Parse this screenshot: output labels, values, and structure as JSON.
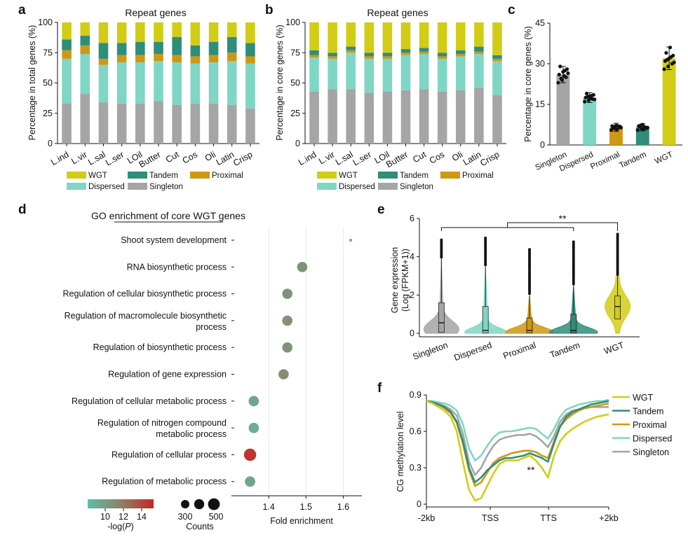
{
  "colors": {
    "WGT": "#d2cc16",
    "Tandem": "#2e8e7a",
    "Proximal": "#cf9814",
    "Dispersed": "#7fd6c4",
    "Singleton": "#a5a5a5"
  },
  "panel_labels": {
    "a": "a",
    "b": "b",
    "c": "c",
    "d": "d",
    "e": "e",
    "f": "f"
  },
  "chart_data": [
    {
      "panel": "a",
      "type": "bar",
      "stacked": true,
      "title": "Repeat genes",
      "ylabel": "Percentage in total genes (%)",
      "ylim": [
        0,
        100
      ],
      "yticks": [
        "0",
        "25",
        "50",
        "75",
        "100"
      ],
      "categories": [
        "L.ind",
        "L.vir",
        "L.sal",
        "L.ser",
        "LOil",
        "Butter",
        "Cut",
        "Cos",
        "Oli",
        "Latin",
        "Crisp"
      ],
      "series": [
        {
          "name": "Singleton",
          "values": [
            33,
            41,
            34,
            33,
            33,
            35,
            32,
            33,
            33,
            32,
            29
          ]
        },
        {
          "name": "Dispersed",
          "values": [
            37,
            33,
            31,
            34,
            34,
            33,
            35,
            33,
            34,
            36,
            37
          ]
        },
        {
          "name": "Proximal",
          "values": [
            7,
            7,
            5,
            6,
            6,
            6,
            6,
            6,
            6,
            7,
            6
          ]
        },
        {
          "name": "Tandem",
          "values": [
            9,
            8,
            13,
            10,
            11,
            10,
            15,
            9,
            11,
            13,
            11
          ]
        },
        {
          "name": "WGT",
          "values": [
            14,
            11,
            17,
            17,
            16,
            16,
            12,
            19,
            16,
            12,
            17
          ]
        }
      ],
      "legend": {
        "row1": [
          "WGT",
          "Tandem",
          "Proximal"
        ],
        "row2": [
          "Dispersed",
          "Singleton"
        ]
      }
    },
    {
      "panel": "b",
      "type": "bar",
      "stacked": true,
      "title": "Repeat genes",
      "ylabel": "Percentage in core genes (%)",
      "ylim": [
        0,
        100
      ],
      "yticks": [
        "0",
        "25",
        "50",
        "75",
        "100"
      ],
      "categories": [
        "L.ind",
        "L.vir",
        "L.sal",
        "L.ser",
        "LOil",
        "Butter",
        "Cut",
        "Cos",
        "Oli",
        "Latin",
        "Crisp"
      ],
      "series": [
        {
          "name": "Singleton",
          "values": [
            43,
            45,
            45,
            42,
            43,
            44,
            45,
            43,
            44,
            46,
            40
          ]
        },
        {
          "name": "Dispersed",
          "values": [
            28,
            25,
            30,
            28,
            27,
            29,
            29,
            27,
            28,
            28,
            28
          ]
        },
        {
          "name": "Proximal",
          "values": [
            2,
            2,
            2,
            2,
            2,
            2,
            2,
            2,
            2,
            2,
            2
          ]
        },
        {
          "name": "Tandem",
          "values": [
            4,
            3,
            3,
            3,
            3,
            3,
            3,
            3,
            3,
            4,
            3
          ]
        },
        {
          "name": "WGT",
          "values": [
            23,
            25,
            20,
            25,
            25,
            22,
            21,
            25,
            23,
            20,
            27
          ]
        }
      ],
      "legend": {
        "row1": [
          "WGT",
          "Tandem",
          "Proximal"
        ],
        "row2": [
          "Dispersed",
          "Singleton"
        ]
      }
    },
    {
      "panel": "c",
      "type": "bar",
      "ylabel": "Percentage in core genes (%)",
      "ylim": [
        0,
        45
      ],
      "yticks": [
        "0",
        "15",
        "30",
        "45"
      ],
      "categories": [
        "Singleton",
        "Dispersed",
        "Proximal",
        "Tandem",
        "WGT"
      ],
      "values": [
        26,
        17.5,
        6.5,
        6.5,
        32
      ],
      "error": [
        3,
        1.8,
        1.5,
        1.3,
        4.2
      ],
      "points": [
        [
          23,
          24,
          25,
          26,
          27,
          28,
          29,
          25.5,
          26.5,
          24.5,
          27.5
        ],
        [
          16,
          16.5,
          17,
          17.5,
          18,
          18.5,
          19,
          17.2,
          16.8,
          17.8,
          18.2
        ],
        [
          5.5,
          6,
          6.5,
          7,
          7.2,
          6.8,
          6.2,
          5.8,
          6.4,
          6.6,
          7
        ],
        [
          5.5,
          6,
          6.5,
          7,
          7.5,
          6.2,
          6.8,
          5.8,
          6.4,
          7.2,
          6.6
        ],
        [
          28,
          29,
          30,
          31,
          32,
          33,
          34,
          36,
          30.5,
          31.5,
          32.5
        ]
      ]
    },
    {
      "panel": "d",
      "type": "scatter",
      "title": "GO enrichment of core WGT genes",
      "xlabel": "Fold enrichment",
      "xlim": [
        1.3,
        1.65
      ],
      "xticks": [
        "1.4",
        "1.5",
        "1.6"
      ],
      "terms": [
        [
          "Shoot system development"
        ],
        [
          "RNA biosynthetic process"
        ],
        [
          "Regulation of cellular biosynthetic process"
        ],
        [
          "Regulation of macromolecule biosynthetic",
          "process"
        ],
        [
          "Regulation of biosynthetic process"
        ],
        [
          "Regulation of gene expression"
        ],
        [
          "Regulation of cellular metabolic process"
        ],
        [
          "Regulation of nitrogen compound",
          "metabolic process"
        ],
        [
          "Regulation of cellular process"
        ],
        [
          "Regulation of metabolic process"
        ]
      ],
      "fold_enrichment": [
        1.62,
        1.49,
        1.45,
        1.45,
        1.45,
        1.44,
        1.36,
        1.36,
        1.35,
        1.35
      ],
      "counts": [
        30,
        390,
        390,
        390,
        390,
        390,
        400,
        400,
        560,
        400
      ],
      "neg_log_p": [
        10,
        11.5,
        11.5,
        11.5,
        11.5,
        11.8,
        10.5,
        10,
        15.5,
        10.5
      ],
      "color_legend": {
        "ticks": [
          "10",
          "12",
          "14"
        ],
        "label_prefix": "-log(",
        "label_var": "P",
        "label_suffix": ")"
      },
      "size_legend": {
        "ticks": [
          "300",
          "500"
        ],
        "label": "Counts"
      }
    },
    {
      "panel": "e",
      "type": "violin",
      "ylabel_line1": "Gene expression",
      "ylabel_line2": "(Log (FPKM+1))",
      "ylim": [
        0,
        6
      ],
      "yticks": [
        "0",
        "2",
        "4",
        "6"
      ],
      "categories": [
        "Singleton",
        "Dispersed",
        "Proximal",
        "Tandem",
        "WGT"
      ],
      "medians": [
        0.55,
        0.15,
        0.15,
        0.15,
        1.4
      ],
      "q1": [
        0.05,
        0.02,
        0.02,
        0.02,
        0.75
      ],
      "q3": [
        1.6,
        1.4,
        0.8,
        1.0,
        1.95
      ],
      "whisker_top": [
        3.9,
        3.5,
        2.0,
        2.5,
        3.0
      ],
      "outlier_top": [
        4.9,
        5.0,
        4.4,
        4.8,
        5.2
      ],
      "significance": "**"
    },
    {
      "panel": "f",
      "type": "line",
      "ylabel": "CG methylation level",
      "ylim": [
        0,
        0.9
      ],
      "yticks": [
        "0",
        "0.3",
        "0.6",
        "0.9"
      ],
      "xticks": [
        "-2kb",
        "TSS",
        "TTS",
        "+2kb"
      ],
      "x": [
        0,
        4,
        8,
        12,
        16,
        20,
        24,
        28,
        32,
        36,
        40,
        44,
        48,
        52,
        56,
        60,
        64,
        68,
        72,
        76,
        80,
        84,
        88,
        92,
        96,
        100,
        104,
        108,
        112,
        116,
        120
      ],
      "series": [
        {
          "name": "WGT",
          "values": [
            0.85,
            0.83,
            0.8,
            0.77,
            0.72,
            0.6,
            0.35,
            0.12,
            0.03,
            0.05,
            0.15,
            0.25,
            0.33,
            0.36,
            0.36,
            0.36,
            0.38,
            0.4,
            0.36,
            0.3,
            0.22,
            0.4,
            0.52,
            0.58,
            0.62,
            0.65,
            0.68,
            0.7,
            0.72,
            0.73,
            0.74
          ]
        },
        {
          "name": "Tandem",
          "values": [
            0.85,
            0.84,
            0.82,
            0.8,
            0.76,
            0.68,
            0.52,
            0.3,
            0.18,
            0.22,
            0.28,
            0.32,
            0.36,
            0.38,
            0.38,
            0.39,
            0.4,
            0.42,
            0.4,
            0.38,
            0.35,
            0.5,
            0.64,
            0.72,
            0.76,
            0.78,
            0.8,
            0.82,
            0.83,
            0.84,
            0.85
          ]
        },
        {
          "name": "Proximal",
          "values": [
            0.85,
            0.84,
            0.82,
            0.79,
            0.75,
            0.67,
            0.5,
            0.28,
            0.15,
            0.18,
            0.26,
            0.34,
            0.38,
            0.4,
            0.42,
            0.43,
            0.44,
            0.44,
            0.43,
            0.4,
            0.38,
            0.52,
            0.64,
            0.7,
            0.74,
            0.77,
            0.79,
            0.8,
            0.81,
            0.82,
            0.83
          ]
        },
        {
          "name": "Dispersed",
          "values": [
            0.85,
            0.85,
            0.84,
            0.83,
            0.81,
            0.77,
            0.66,
            0.46,
            0.36,
            0.4,
            0.48,
            0.55,
            0.59,
            0.6,
            0.6,
            0.61,
            0.62,
            0.63,
            0.62,
            0.58,
            0.54,
            0.62,
            0.72,
            0.78,
            0.8,
            0.82,
            0.83,
            0.84,
            0.85,
            0.85,
            0.86
          ]
        },
        {
          "name": "Singleton",
          "values": [
            0.85,
            0.84,
            0.83,
            0.81,
            0.78,
            0.73,
            0.58,
            0.35,
            0.24,
            0.3,
            0.4,
            0.48,
            0.53,
            0.55,
            0.56,
            0.57,
            0.57,
            0.58,
            0.56,
            0.52,
            0.47,
            0.56,
            0.68,
            0.74,
            0.77,
            0.78,
            0.79,
            0.8,
            0.8,
            0.8,
            0.8
          ]
        }
      ],
      "significance": "**",
      "legend": [
        "WGT",
        "Tandem",
        "Proximal",
        "Dispersed",
        "Singleton"
      ]
    }
  ]
}
